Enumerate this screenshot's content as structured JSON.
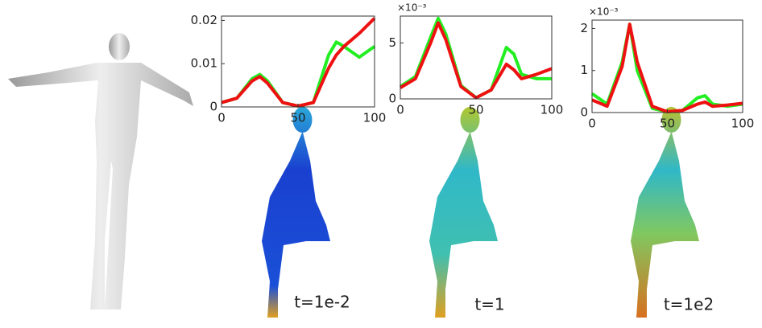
{
  "chart_data": [
    {
      "type": "line",
      "caption": "t=1e-2",
      "x": [
        0,
        10,
        20,
        25,
        30,
        40,
        50,
        60,
        70,
        75,
        80,
        90,
        100
      ],
      "series": [
        {
          "color": "#22ee22",
          "values": [
            0.001,
            0.002,
            0.0065,
            0.0075,
            0.006,
            0.001,
            0.0002,
            0.001,
            0.012,
            0.015,
            0.014,
            0.0115,
            0.014
          ]
        },
        {
          "color": "#ee1111",
          "values": [
            0.001,
            0.002,
            0.006,
            0.007,
            0.0055,
            0.001,
            0.0002,
            0.001,
            0.009,
            0.012,
            0.014,
            0.017,
            0.0205
          ]
        }
      ],
      "xlim": [
        0,
        100
      ],
      "xticks": [
        0,
        50,
        100
      ],
      "ylim": [
        0,
        0.021
      ],
      "yticks": [
        0,
        0.01,
        0.02
      ]
    },
    {
      "type": "line",
      "caption": "t=1",
      "y_multiplier": "×10⁻³",
      "x": [
        0,
        10,
        20,
        25,
        30,
        40,
        50,
        60,
        70,
        75,
        80,
        90,
        100
      ],
      "series": [
        {
          "color": "#22ee22",
          "values": [
            1.1,
            2,
            5.5,
            7.2,
            5.8,
            1.2,
            0.1,
            0.8,
            4.6,
            4.0,
            2.2,
            1.8,
            1.8
          ]
        },
        {
          "color": "#ee1111",
          "values": [
            1,
            1.8,
            5,
            6.8,
            5.3,
            1.1,
            0.1,
            0.8,
            3.1,
            2.6,
            1.8,
            2.2,
            2.7
          ]
        }
      ],
      "xlim": [
        0,
        100
      ],
      "xticks": [
        0,
        50,
        100
      ],
      "ylim": [
        0,
        7.4
      ],
      "yticks": [
        0,
        5
      ]
    },
    {
      "type": "line",
      "caption": "t=1e2",
      "y_multiplier": "×10⁻³",
      "x": [
        0,
        10,
        20,
        25,
        30,
        40,
        50,
        60,
        70,
        75,
        80,
        90,
        100
      ],
      "series": [
        {
          "color": "#22ee22",
          "values": [
            0.45,
            0.2,
            1.2,
            2.1,
            1.0,
            0.1,
            0.02,
            0.05,
            0.35,
            0.4,
            0.2,
            0.15,
            0.2
          ]
        },
        {
          "color": "#ee1111",
          "values": [
            0.3,
            0.15,
            1.1,
            2.1,
            1.2,
            0.15,
            0.02,
            0.05,
            0.2,
            0.25,
            0.15,
            0.18,
            0.22
          ]
        }
      ],
      "xlim": [
        0,
        100
      ],
      "xticks": [
        0,
        50,
        100
      ],
      "ylim": [
        0,
        2.2
      ],
      "yticks": [
        0,
        1,
        2
      ]
    }
  ]
}
